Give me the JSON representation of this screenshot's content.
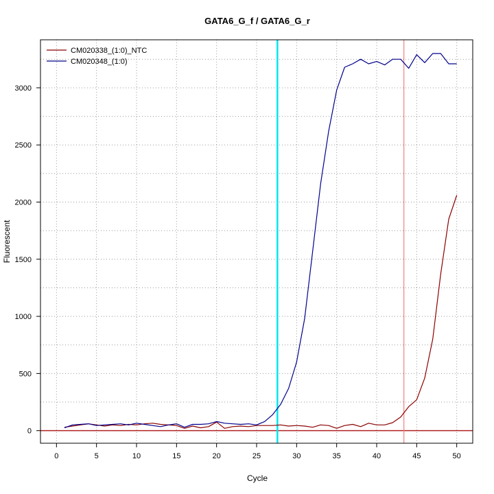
{
  "chart_data": {
    "type": "line",
    "title": "GATA6_G_f / GATA6_G_r",
    "xlabel": "Cycle",
    "ylabel": "Fluorescent",
    "xlim": [
      -2,
      52
    ],
    "ylim": [
      -110,
      3420
    ],
    "xticks": [
      0,
      5,
      10,
      15,
      20,
      25,
      30,
      35,
      40,
      45,
      50
    ],
    "yticks": [
      0,
      500,
      1000,
      1500,
      2000,
      2500,
      3000
    ],
    "grid": true,
    "legend_position": "top-left",
    "threshold": 0,
    "vlines": [
      {
        "x": 27.6,
        "color": "#00e5ee"
      },
      {
        "x": 43.4,
        "color": "#f08080"
      }
    ],
    "x": [
      1,
      2,
      3,
      4,
      5,
      6,
      7,
      8,
      9,
      10,
      11,
      12,
      13,
      14,
      15,
      16,
      17,
      18,
      19,
      20,
      21,
      22,
      23,
      24,
      25,
      26,
      27,
      28,
      29,
      30,
      31,
      32,
      33,
      34,
      35,
      36,
      37,
      38,
      39,
      40,
      41,
      42,
      43,
      44,
      45,
      46,
      47,
      48,
      49,
      50
    ],
    "series": [
      {
        "name": "CM020338_(1:0)_NTC",
        "color": "#8b0000",
        "values": [
          30,
          40,
          50,
          60,
          50,
          40,
          50,
          45,
          55,
          50,
          60,
          65,
          55,
          50,
          45,
          20,
          40,
          25,
          35,
          75,
          20,
          35,
          40,
          35,
          45,
          45,
          45,
          50,
          40,
          45,
          40,
          30,
          50,
          45,
          20,
          45,
          55,
          35,
          65,
          50,
          50,
          70,
          120,
          210,
          270,
          460,
          800,
          1370,
          1850,
          2060
        ]
      },
      {
        "name": "CM020348_(1:0)",
        "color": "#00008b",
        "values": [
          25,
          50,
          55,
          60,
          45,
          50,
          55,
          60,
          50,
          65,
          55,
          45,
          35,
          50,
          60,
          30,
          55,
          55,
          60,
          80,
          65,
          60,
          55,
          60,
          50,
          80,
          140,
          230,
          370,
          600,
          980,
          1570,
          2160,
          2620,
          2980,
          3180,
          3210,
          3250,
          3210,
          3230,
          3200,
          3250,
          3250,
          3170,
          3290,
          3220,
          3300,
          3300,
          3210,
          3210
        ]
      }
    ]
  }
}
